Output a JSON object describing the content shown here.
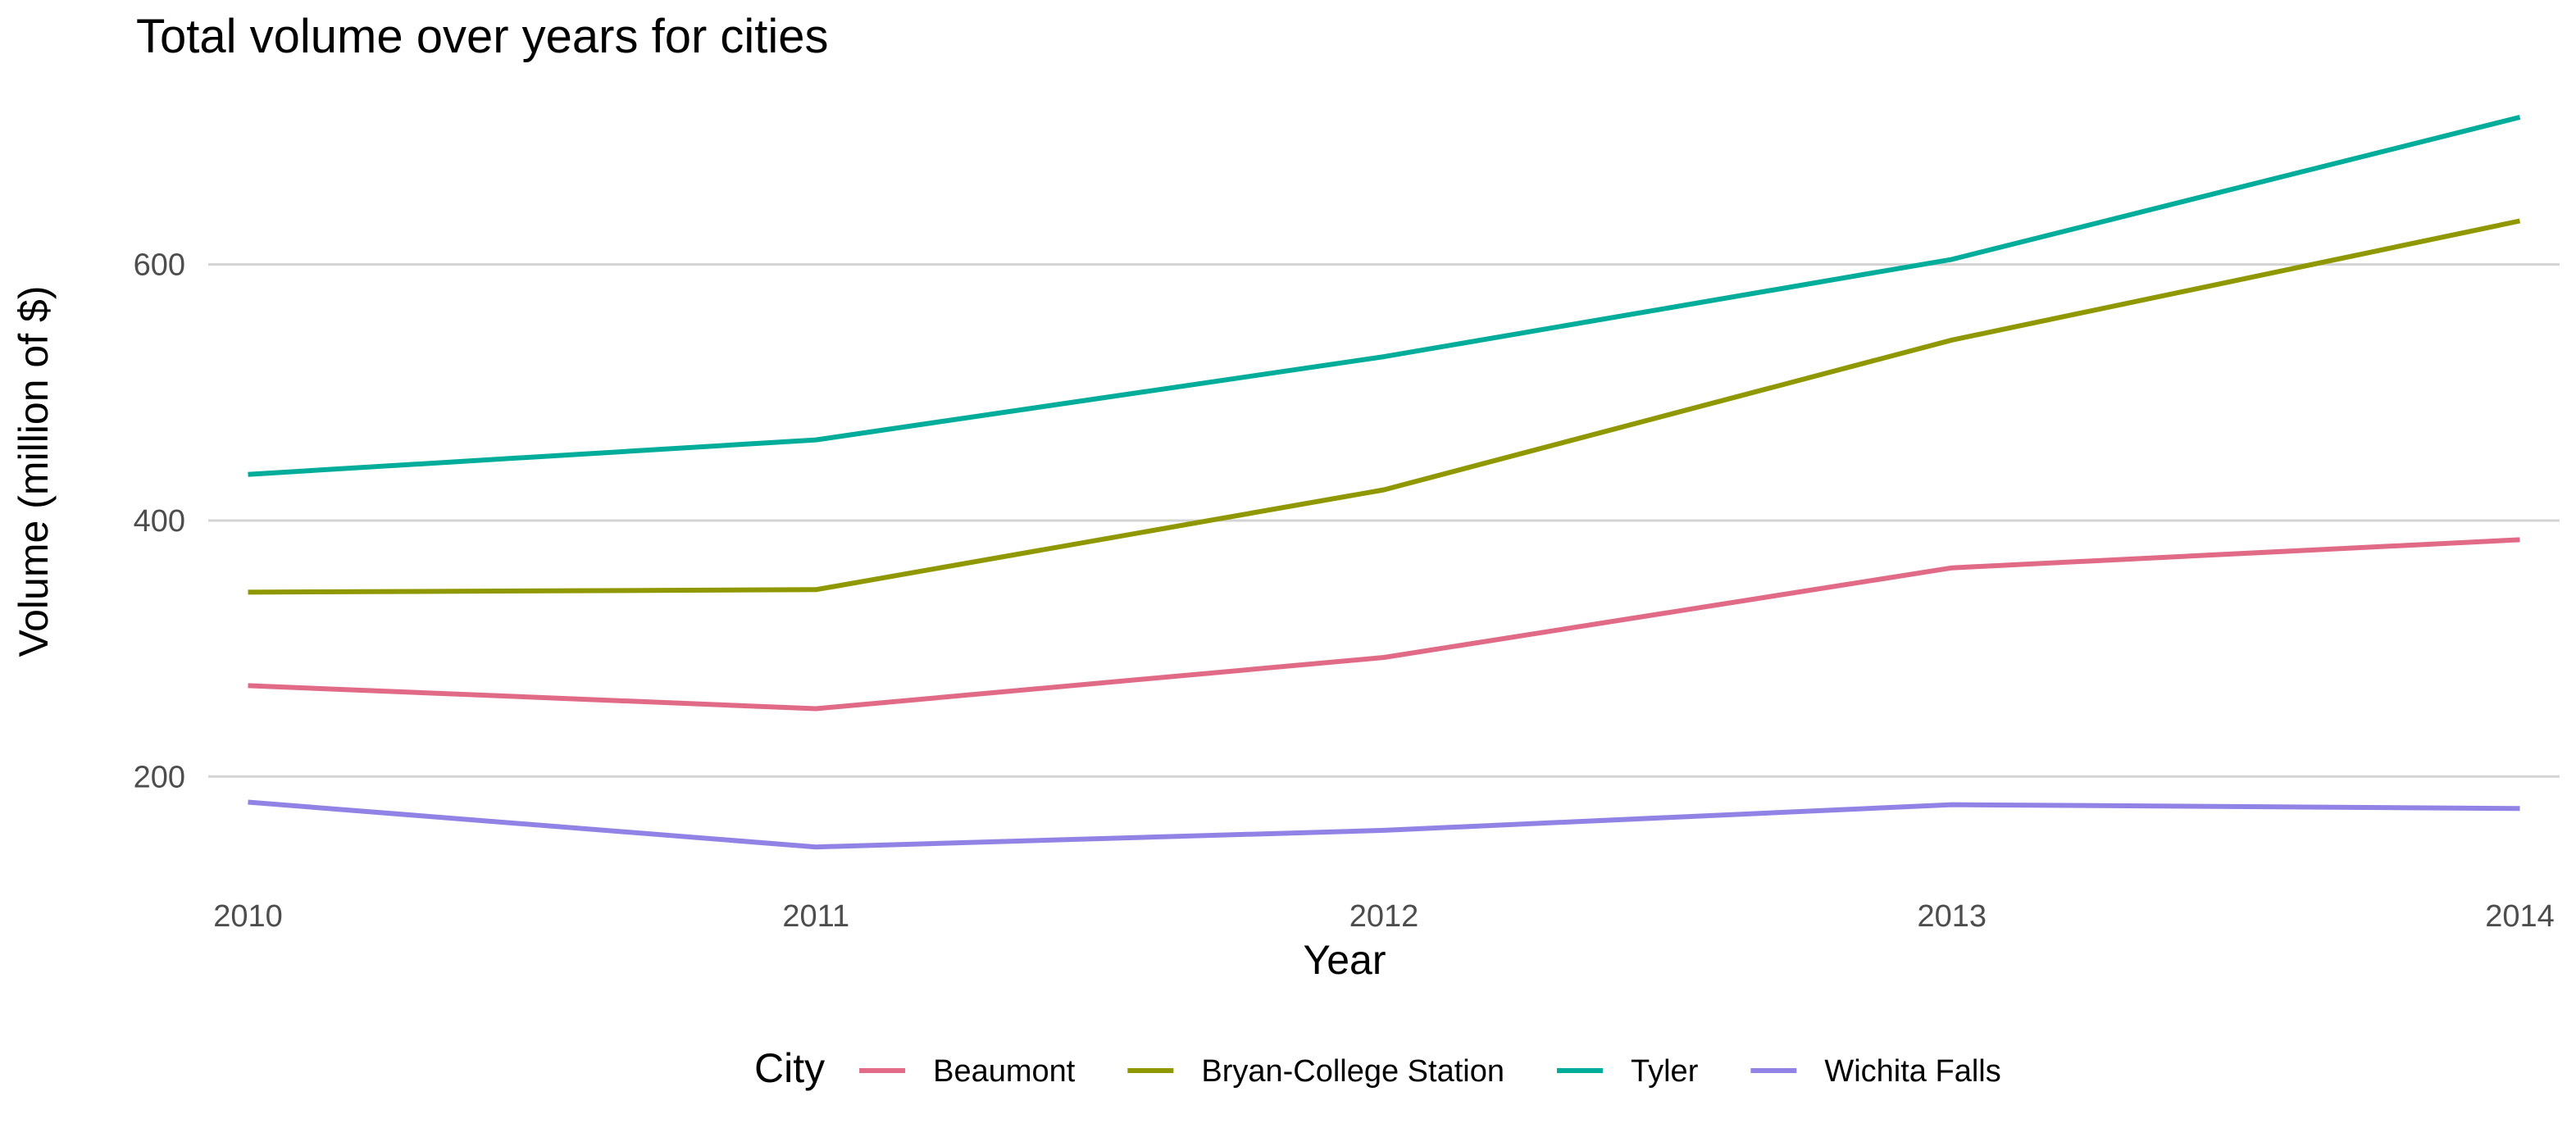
{
  "chart_data": {
    "type": "line",
    "title": "Total volume over years for cities",
    "xlabel": "Year",
    "ylabel": "Volume (million of $)",
    "x": [
      2010,
      2011,
      2012,
      2013,
      2014
    ],
    "x_tick_labels": [
      "2010",
      "2011",
      "2012",
      "2013",
      "2014"
    ],
    "xlim": [
      2009.93,
      2014.07
    ],
    "y_ticks": [
      200,
      400,
      600
    ],
    "y_tick_labels": [
      "200",
      "400",
      "600"
    ],
    "ylim": [
      115,
      740
    ],
    "grid": "horizontal major",
    "legend": {
      "title": "City",
      "position": "bottom"
    },
    "series": [
      {
        "name": "Beaumont",
        "color": "#E16A86",
        "values": [
          271,
          253,
          293,
          363,
          385
        ]
      },
      {
        "name": "Bryan-College Station",
        "color": "#909800",
        "values": [
          344,
          346,
          424,
          541,
          634
        ]
      },
      {
        "name": "Tyler",
        "color": "#00AD9A",
        "values": [
          436,
          463,
          528,
          604,
          715
        ]
      },
      {
        "name": "Wichita Falls",
        "color": "#9183E6",
        "values": [
          180,
          145,
          158,
          178,
          175
        ]
      }
    ]
  }
}
